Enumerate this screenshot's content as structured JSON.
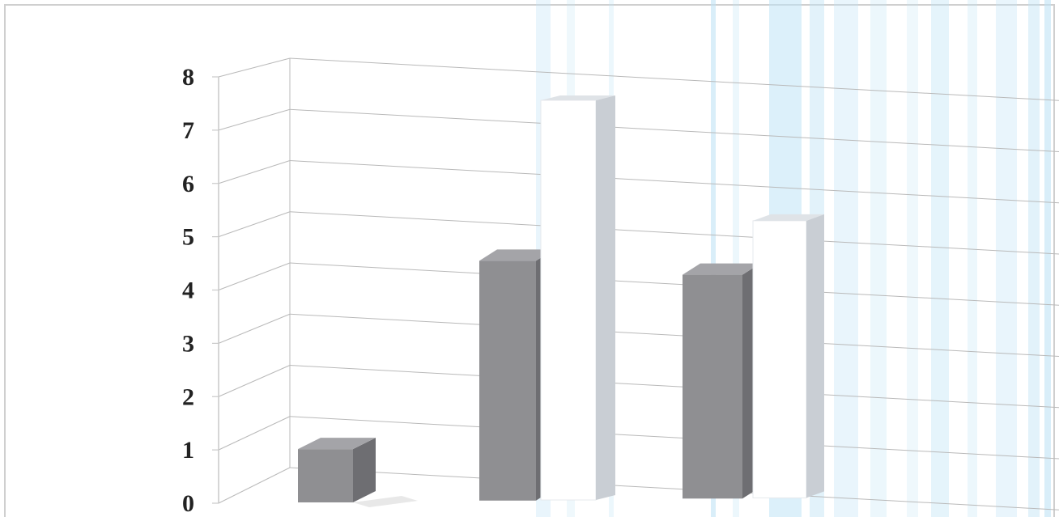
{
  "chart_data": {
    "type": "bar",
    "categories": [
      "",
      "",
      "",
      "",
      ""
    ],
    "values": [
      1,
      4.5,
      7.5,
      4.2,
      5.2
    ],
    "ylim": [
      0,
      8
    ],
    "yticks": [
      "0",
      "1",
      "2",
      "3",
      "4",
      "5",
      "6",
      "7",
      "8"
    ],
    "grid": true,
    "title": "",
    "xlabel": "",
    "ylabel": "",
    "colors": {
      "bar_front": "#8f8f92",
      "bar_side": "#6e6e72",
      "bar_top": "#a4a4a8",
      "faded_bar_side": "#c9ced4",
      "faded_bar_top": "#dfe3e7",
      "gridline": "#b9b9b9",
      "scan_streak": "#bfe3f5",
      "frame": "#c9c9c9"
    }
  }
}
